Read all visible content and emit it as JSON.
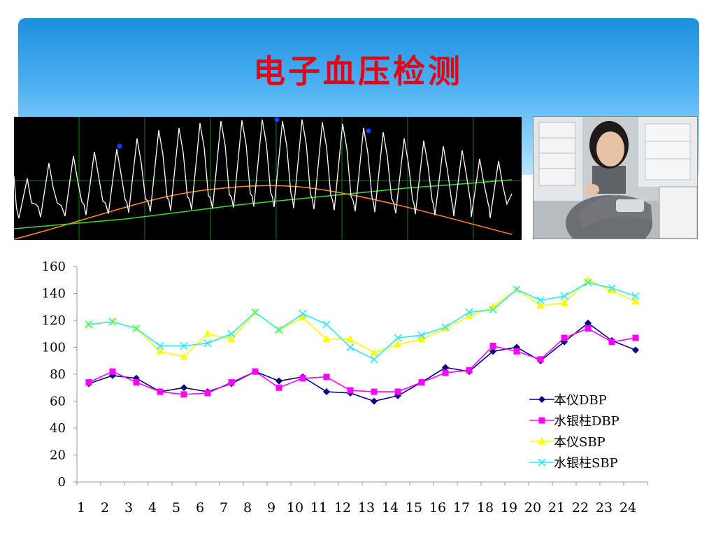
{
  "slide": {
    "title": "电子血压检测"
  },
  "colors": {
    "title": "#e60012",
    "banner_top": "#1c8fe0",
    "banner_bottom": "#b9e6fd",
    "waveform_bg": "#000000",
    "pulse_wave": "#ffffff",
    "cuff_pressure": "#ff8c1a",
    "trend_line": "#33dd33",
    "grid_lines": "#1a7a1a",
    "markers": "#1a3cff"
  },
  "chart_data": {
    "type": "line",
    "title": "",
    "xlabel": "",
    "ylabel": "",
    "categories": [
      "1",
      "2",
      "3",
      "4",
      "5",
      "6",
      "7",
      "8",
      "9",
      "10",
      "11",
      "12",
      "13",
      "14",
      "15",
      "16",
      "17",
      "18",
      "19",
      "20",
      "21",
      "22",
      "23",
      "24"
    ],
    "ylim": [
      0,
      160
    ],
    "yticks": [
      "0",
      "20",
      "40",
      "60",
      "80",
      "100",
      "120",
      "140",
      "160"
    ],
    "grid": false,
    "legend_position": "right",
    "series": [
      {
        "name": "本仪DBP",
        "color": "#000080",
        "marker": "diamond",
        "values": [
          73,
          79,
          77,
          67,
          70,
          67,
          73,
          82,
          75,
          78,
          67,
          66,
          60,
          64,
          74,
          85,
          82,
          97,
          100,
          90,
          104,
          118,
          105,
          98
        ]
      },
      {
        "name": "水银柱DBP",
        "color": "#ff00ff",
        "marker": "square",
        "values": [
          74,
          82,
          74,
          67,
          65,
          66,
          74,
          82,
          70,
          77,
          78,
          68,
          67,
          67,
          74,
          81,
          83,
          101,
          97,
          91,
          107,
          114,
          104,
          107
        ]
      },
      {
        "name": "本仪SBP",
        "color": "#ffff00",
        "marker": "triangle",
        "values": [
          117,
          119,
          114,
          97,
          93,
          110,
          106,
          126,
          113,
          122,
          106,
          106,
          96,
          102,
          106,
          114,
          123,
          130,
          143,
          131,
          133,
          150,
          142,
          134
        ]
      },
      {
        "name": "水银柱SBP",
        "color": "#33e6f0",
        "marker": "x",
        "values": [
          117,
          119,
          114,
          101,
          101,
          103,
          110,
          126,
          113,
          125,
          117,
          100,
          91,
          107,
          109,
          115,
          126,
          128,
          143,
          135,
          138,
          148,
          144,
          138
        ]
      }
    ]
  }
}
